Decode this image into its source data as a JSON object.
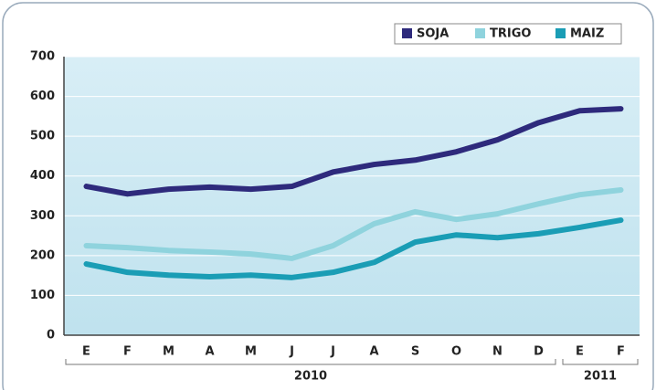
{
  "chart_data": {
    "type": "line",
    "categories": [
      "E",
      "F",
      "M",
      "A",
      "M",
      "J",
      "J",
      "A",
      "S",
      "O",
      "N",
      "D",
      "E",
      "F"
    ],
    "year_groups": [
      {
        "label": "2010",
        "span": 12
      },
      {
        "label": "2011",
        "span": 2
      }
    ],
    "series": [
      {
        "name": "SOJA",
        "color": "#2e2a7c",
        "values": [
          374,
          355,
          367,
          372,
          367,
          374,
          410,
          429,
          440,
          461,
          491,
          534,
          564,
          569
        ]
      },
      {
        "name": "TRIGO",
        "color": "#8fd3dd",
        "values": [
          225,
          220,
          213,
          209,
          204,
          193,
          225,
          280,
          310,
          291,
          305,
          330,
          353,
          365
        ]
      },
      {
        "name": "MAIZ",
        "color": "#1a9db5",
        "values": [
          179,
          158,
          151,
          147,
          151,
          145,
          158,
          183,
          234,
          252,
          245,
          255,
          271,
          289
        ]
      }
    ],
    "ylim": [
      0,
      700
    ],
    "yticks": [
      0,
      100,
      200,
      300,
      400,
      500,
      600,
      700
    ],
    "grid": true,
    "legend": "top-right"
  }
}
